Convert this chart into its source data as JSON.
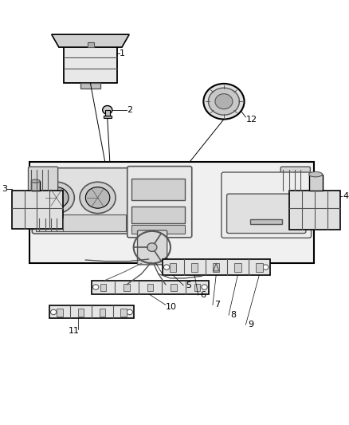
{
  "bg_color": "#ffffff",
  "line_color": "#000000",
  "dgray": "#555555",
  "mgray": "#aaaaaa",
  "lgray": "#cccccc",
  "part_fill": "#e8e8e8",
  "figsize": [
    4.38,
    5.33
  ],
  "dpi": 100
}
